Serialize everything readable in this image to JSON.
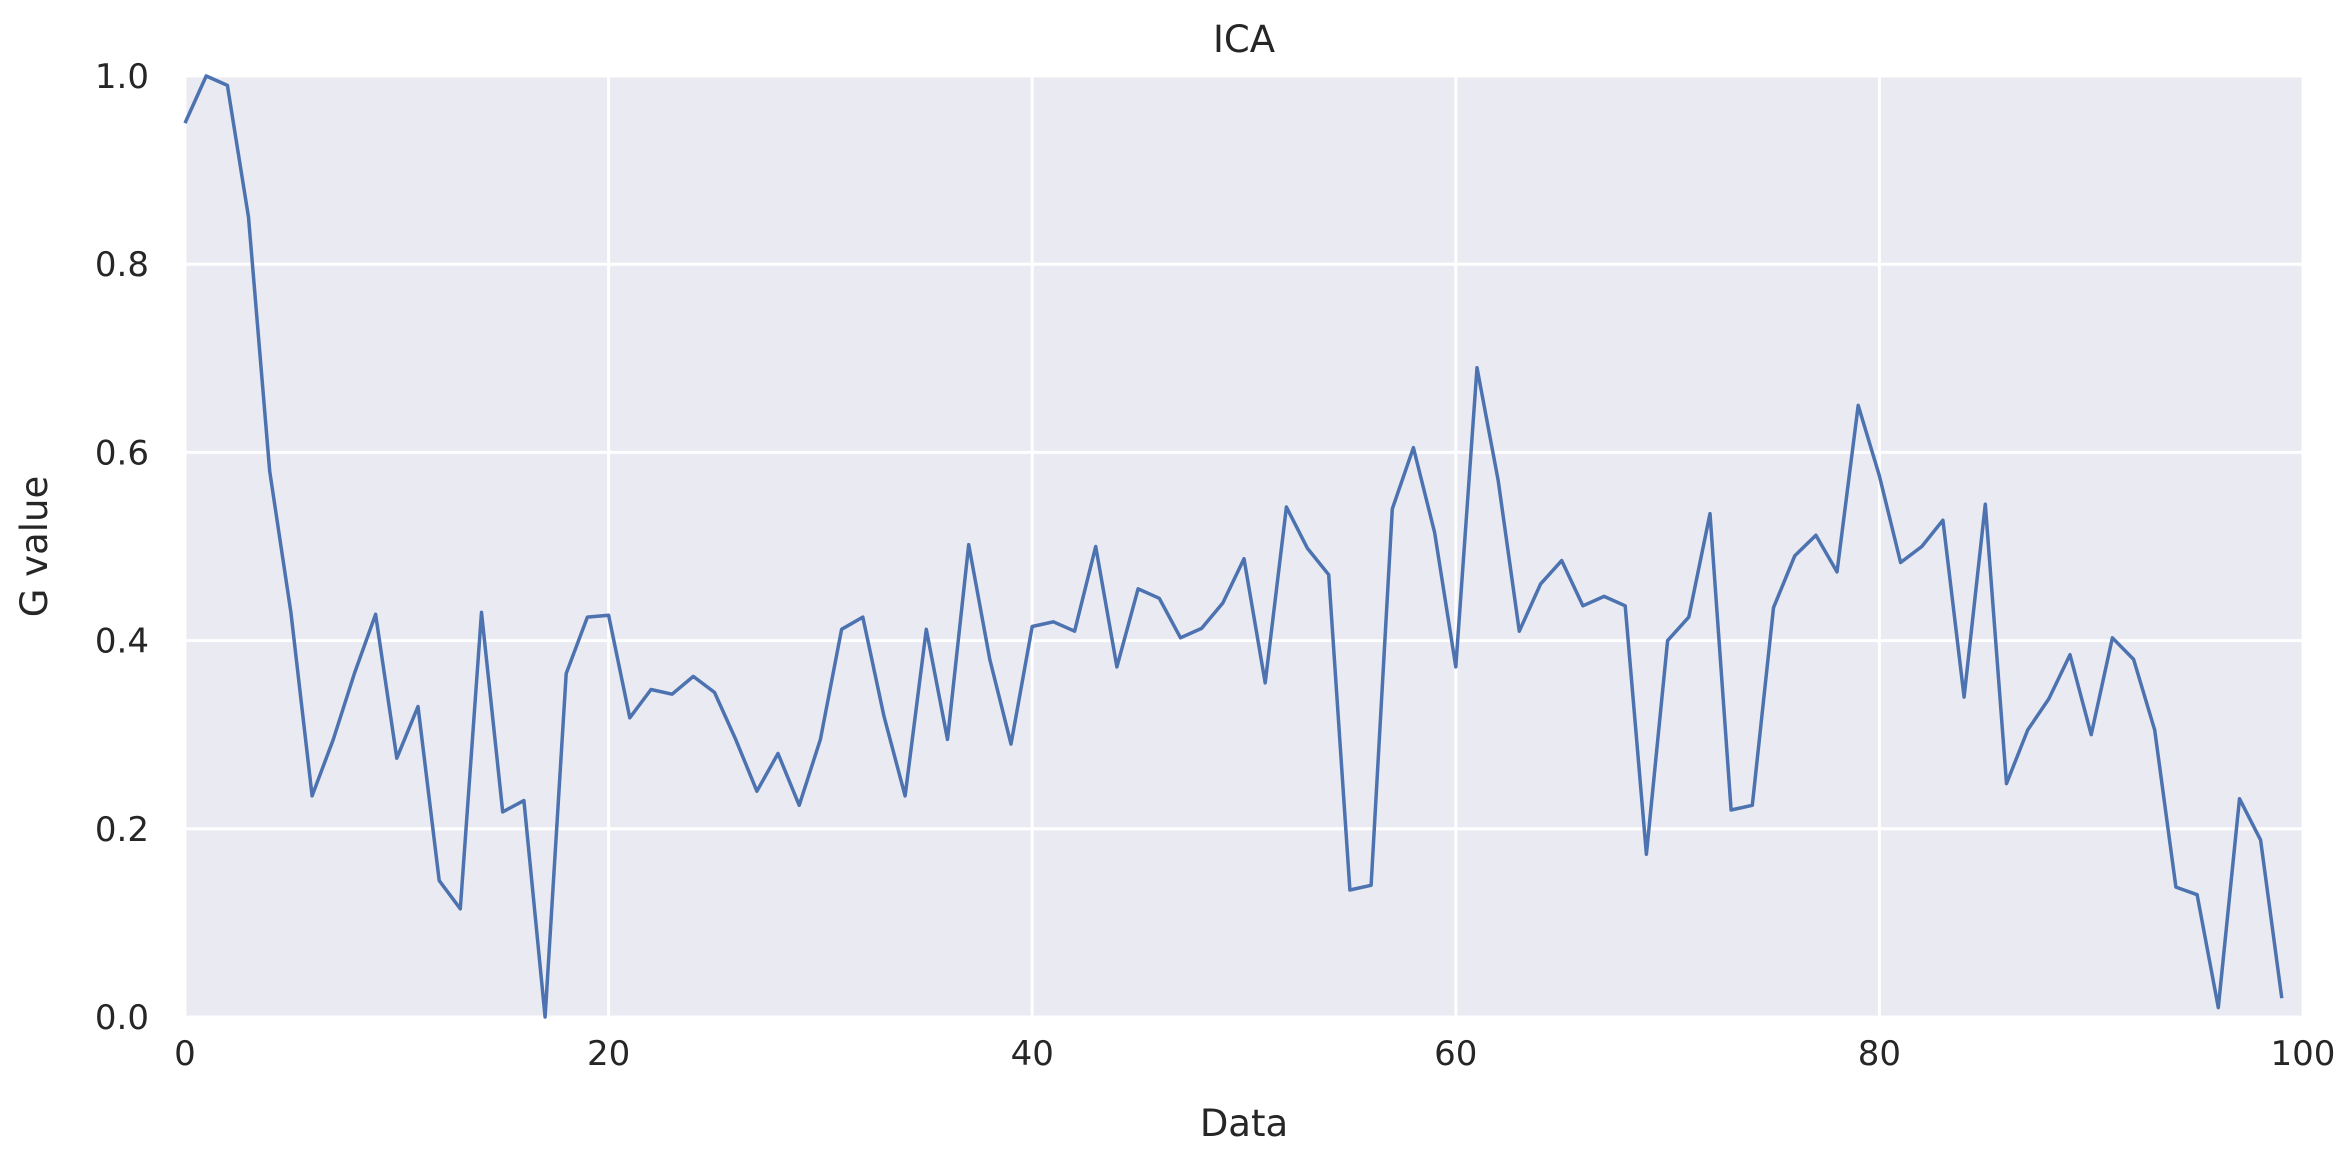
{
  "chart_data": {
    "type": "line",
    "title": "ICA",
    "xlabel": "Data",
    "ylabel": "G value",
    "xlim": [
      0,
      100
    ],
    "ylim": [
      0.0,
      1.0
    ],
    "x_ticks": [
      "0",
      "20",
      "40",
      "60",
      "80",
      "100"
    ],
    "y_ticks": [
      "0.0",
      "0.2",
      "0.4",
      "0.6",
      "0.8",
      "1.0"
    ],
    "grid": true,
    "background_color": "#EAEAF2",
    "grid_color": "#FFFFFF",
    "line_color": "#4C72B0",
    "x": [
      0,
      1,
      2,
      3,
      4,
      5,
      6,
      7,
      8,
      9,
      10,
      11,
      12,
      13,
      14,
      15,
      16,
      17,
      18,
      19,
      20,
      21,
      22,
      23,
      24,
      25,
      26,
      27,
      28,
      29,
      30,
      31,
      32,
      33,
      34,
      35,
      36,
      37,
      38,
      39,
      40,
      41,
      42,
      43,
      44,
      45,
      46,
      47,
      48,
      49,
      50,
      51,
      52,
      53,
      54,
      55,
      56,
      57,
      58,
      59,
      60,
      61,
      62,
      63,
      64,
      65,
      66,
      67,
      68,
      69,
      70,
      71,
      72,
      73,
      74,
      75,
      76,
      77,
      78,
      79,
      80,
      81,
      82,
      83,
      84,
      85,
      86,
      87,
      88,
      89,
      90,
      91,
      92,
      93,
      94,
      95,
      96,
      97,
      98,
      99
    ],
    "y": [
      0.95,
      1.0,
      0.99,
      0.85,
      0.58,
      0.43,
      0.235,
      0.295,
      0.365,
      0.428,
      0.275,
      0.33,
      0.145,
      0.115,
      0.43,
      0.218,
      0.23,
      0.0,
      0.365,
      0.425,
      0.427,
      0.318,
      0.348,
      0.343,
      0.362,
      0.345,
      0.295,
      0.24,
      0.28,
      0.225,
      0.295,
      0.412,
      0.425,
      0.32,
      0.235,
      0.412,
      0.295,
      0.502,
      0.38,
      0.29,
      0.415,
      0.42,
      0.41,
      0.5,
      0.372,
      0.455,
      0.445,
      0.403,
      0.413,
      0.44,
      0.487,
      0.355,
      0.542,
      0.498,
      0.47,
      0.135,
      0.14,
      0.54,
      0.605,
      0.515,
      0.372,
      0.69,
      0.57,
      0.41,
      0.46,
      0.485,
      0.437,
      0.447,
      0.437,
      0.173,
      0.4,
      0.425,
      0.535,
      0.22,
      0.225,
      0.435,
      0.49,
      0.512,
      0.473,
      0.65,
      0.575,
      0.483,
      0.5,
      0.528,
      0.34,
      0.545,
      0.248,
      0.305,
      0.338,
      0.385,
      0.3,
      0.403,
      0.38,
      0.305,
      0.138,
      0.13,
      0.01,
      0.232,
      0.188,
      0.02
    ]
  }
}
